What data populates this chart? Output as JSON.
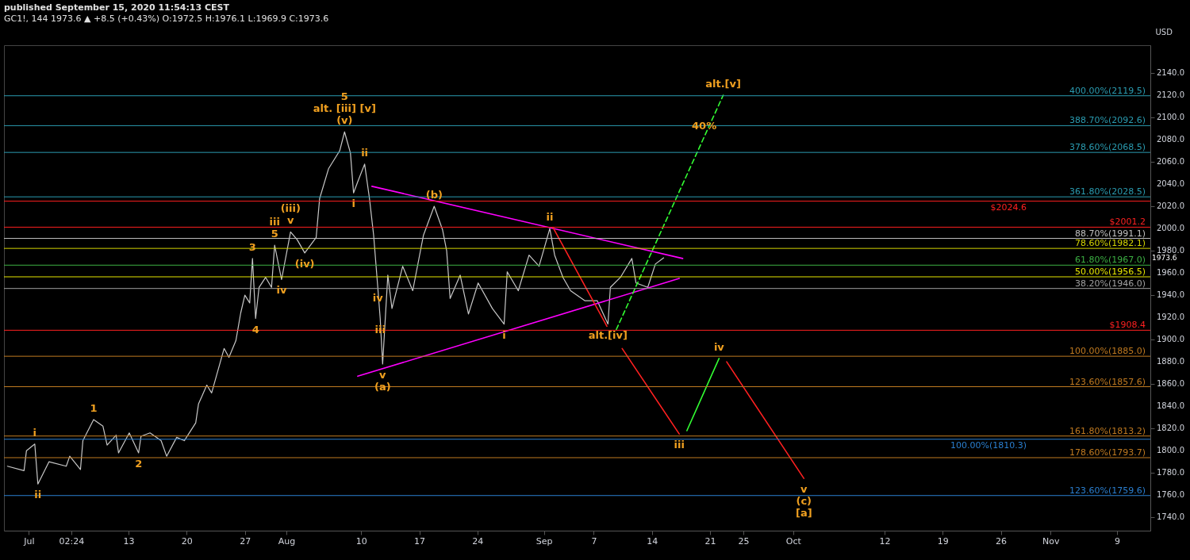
{
  "chart_data": {
    "type": "line",
    "title": "published September 15, 2020 11:54:13 CEST",
    "subtitle": "GC1!, 144  1973.6 ▲ +8.5 (+0.43%) O:1972.5 H:1976.1 L:1969.9 C:1973.6",
    "ylabel": "USD",
    "grid": false,
    "xlim": [
      "2020-06-28",
      "2020-11-13"
    ],
    "xticks": [
      {
        "value": "2020-07-01",
        "label": "Jul"
      },
      {
        "value": "2020-07-06T02:24",
        "label": "02:24"
      },
      {
        "value": "2020-07-13",
        "label": "13"
      },
      {
        "value": "2020-07-20",
        "label": "20"
      },
      {
        "value": "2020-07-27",
        "label": "27"
      },
      {
        "value": "2020-08-01",
        "label": "Aug"
      },
      {
        "value": "2020-08-10",
        "label": "10"
      },
      {
        "value": "2020-08-17",
        "label": "17"
      },
      {
        "value": "2020-08-24",
        "label": "24"
      },
      {
        "value": "2020-09-01",
        "label": "Sep"
      },
      {
        "value": "2020-09-07",
        "label": "7"
      },
      {
        "value": "2020-09-14",
        "label": "14"
      },
      {
        "value": "2020-09-21",
        "label": "21"
      },
      {
        "value": "2020-09-25",
        "label": "25"
      },
      {
        "value": "2020-10-01",
        "label": "Oct"
      },
      {
        "value": "2020-10-12",
        "label": "12"
      },
      {
        "value": "2020-10-19",
        "label": "19"
      },
      {
        "value": "2020-10-26",
        "label": "26"
      },
      {
        "value": "2020-11-01",
        "label": "Nov"
      },
      {
        "value": "2020-11-09",
        "label": "9"
      }
    ],
    "ylim": [
      1728,
      2165
    ],
    "yticks": [
      {
        "value": 1740,
        "label": "1740.0"
      },
      {
        "value": 1760,
        "label": "1760.0"
      },
      {
        "value": 1780,
        "label": "1780.0"
      },
      {
        "value": 1800,
        "label": "1800.0"
      },
      {
        "value": 1820,
        "label": "1820.0"
      },
      {
        "value": 1840,
        "label": "1840.0"
      },
      {
        "value": 1860,
        "label": "1860.0"
      },
      {
        "value": 1880,
        "label": "1880.0"
      },
      {
        "value": 1900,
        "label": "1900.0"
      },
      {
        "value": 1920,
        "label": "1920.0"
      },
      {
        "value": 1940,
        "label": "1940.0"
      },
      {
        "value": 1960,
        "label": "1960.0"
      },
      {
        "value": 1980,
        "label": "1980.0"
      },
      {
        "value": 2000,
        "label": "2000.0"
      },
      {
        "value": 2020,
        "label": "2020.0"
      },
      {
        "value": 2040,
        "label": "2040.0"
      },
      {
        "value": 2060,
        "label": "2060.0"
      },
      {
        "value": 2080,
        "label": "2080.0"
      },
      {
        "value": 2100,
        "label": "2100.0"
      },
      {
        "value": 2120,
        "label": "2120.0"
      },
      {
        "value": 2140,
        "label": "2140.0"
      }
    ],
    "series": [
      {
        "type": "line",
        "color": "#c8c8c8",
        "x": [
          "2020-06-28T10:00",
          "2020-06-30T10:00",
          "2020-06-30T17:00",
          "2020-07-01T17:00",
          "2020-07-02T02:00",
          "2020-07-03T10:00",
          "2020-07-05T12:00",
          "2020-07-05T22:00",
          "2020-07-07T05:00",
          "2020-07-07T12:00",
          "2020-07-08T19:00",
          "2020-07-09T22:00",
          "2020-07-10T10:00",
          "2020-07-11T12:00",
          "2020-07-11T19:00",
          "2020-07-13T02:00",
          "2020-07-14T05:00",
          "2020-07-14T12:00",
          "2020-07-15T14:00",
          "2020-07-16T22:00",
          "2020-07-17T14:00",
          "2020-07-18T19:00",
          "2020-07-19T17:00",
          "2020-07-21T02:00",
          "2020-07-21T10:00",
          "2020-07-22T10:00",
          "2020-07-23T00:00",
          "2020-07-24T12:00",
          "2020-07-25T02:00",
          "2020-07-25T22:00",
          "2020-07-26T12:00",
          "2020-07-27T00:00",
          "2020-07-27T14:00",
          "2020-07-27T22:00",
          "2020-07-28T07:00",
          "2020-07-28T17:00",
          "2020-07-29T12:00",
          "2020-07-30T05:00",
          "2020-07-30T14:00",
          "2020-07-31T10:00",
          "2020-08-01T12:00",
          "2020-08-02T07:00",
          "2020-08-03T05:00",
          "2020-08-04T14:00",
          "2020-08-05T00:00",
          "2020-08-06T02:00",
          "2020-08-07T10:00",
          "2020-08-08T00:00",
          "2020-08-08T17:00",
          "2020-08-09T02:00",
          "2020-08-09T14:00",
          "2020-08-10T10:00",
          "2020-08-11T00:00",
          "2020-08-11T12:00",
          "2020-08-12T00:00",
          "2020-08-12T07:00",
          "2020-08-12T14:00",
          "2020-08-13T05:00",
          "2020-08-13T17:00",
          "2020-08-15T00:00",
          "2020-08-16T05:00",
          "2020-08-17T12:00",
          "2020-08-18T19:00",
          "2020-08-19T19:00",
          "2020-08-20T07:00",
          "2020-08-20T17:00",
          "2020-08-21T22:00",
          "2020-08-22T22:00",
          "2020-08-24T02:00",
          "2020-08-25T19:00",
          "2020-08-27T05:00",
          "2020-08-27T14:00",
          "2020-08-28T22:00",
          "2020-08-30T05:00",
          "2020-08-31T10:00",
          "2020-09-01T17:00",
          "2020-09-02T07:00",
          "2020-09-03T07:00",
          "2020-09-04T05:00",
          "2020-09-05T22:00",
          "2020-09-07T10:00",
          "2020-09-08T17:00",
          "2020-09-09T00:00",
          "2020-09-10T05:00",
          "2020-09-11T14:00",
          "2020-09-12T02:00",
          "2020-09-13T12:00",
          "2020-09-14T10:00",
          "2020-09-15T10:00"
        ],
        "values": [
          1786,
          1782,
          1800,
          1806,
          1770,
          1790,
          1786,
          1795,
          1783,
          1809,
          1828,
          1822,
          1805,
          1814,
          1798,
          1816,
          1798,
          1813,
          1816,
          1809,
          1795,
          1812,
          1809,
          1825,
          1842,
          1859,
          1852,
          1892,
          1884,
          1899,
          1924,
          1940,
          1933,
          1973,
          1919,
          1947,
          1956,
          1947,
          1985,
          1954,
          1997,
          1990,
          1978,
          1992,
          2027,
          2054,
          2070,
          2087,
          2068,
          2032,
          2042,
          2058,
          2027,
          1994,
          1947,
          1919,
          1878,
          1958,
          1928,
          1966,
          1944,
          1994,
          2020,
          1999,
          1980,
          1937,
          1958,
          1923,
          1951,
          1928,
          1914,
          1961,
          1944,
          1976,
          1966,
          2000,
          1976,
          1956,
          1944,
          1935,
          1935,
          1914,
          1947,
          1956,
          1973,
          1951,
          1947,
          1968,
          1973.6
        ]
      },
      {
        "type": "line",
        "color": "#ff00ff",
        "x": [
          "2020-08-11T07:00",
          "2020-09-17T17:00"
        ],
        "values": [
          2038,
          1973
        ]
      },
      {
        "type": "line",
        "color": "#ff00ff",
        "x": [
          "2020-08-09T14:00",
          "2020-09-17T07:00"
        ],
        "values": [
          1867,
          1955
        ]
      },
      {
        "type": "line",
        "color": "#ff2020",
        "x": [
          "2020-09-02T02:00",
          "2020-09-08T14:00"
        ],
        "values": [
          2001,
          1912
        ]
      },
      {
        "type": "line",
        "color": "#ff2020",
        "x": [
          "2020-09-10T10:00",
          "2020-09-17T07:00"
        ],
        "values": [
          1892,
          1815
        ]
      },
      {
        "type": "line",
        "color": "#33ff33",
        "x": [
          "2020-09-18T05:00",
          "2020-09-22T02:00"
        ],
        "values": [
          1818,
          1883
        ]
      },
      {
        "type": "line",
        "color": "#ff2020",
        "x": [
          "2020-09-23T00:00",
          "2020-10-02T07:00"
        ],
        "values": [
          1880,
          1775
        ]
      },
      {
        "type": "line",
        "color": "#33ff33",
        "line_style": "dashed",
        "x": [
          "2020-09-09T17:00",
          "2020-09-22T14:00"
        ],
        "values": [
          1909,
          2120
        ]
      }
    ],
    "ref_lines": [
      {
        "axis": "y",
        "value": 2119.5,
        "label": "400.00%(2119.5)",
        "color": "#2a9bb0"
      },
      {
        "axis": "y",
        "value": 2092.6,
        "label": "388.70%(2092.6)",
        "color": "#2a9bb0"
      },
      {
        "axis": "y",
        "value": 2068.5,
        "label": "378.60%(2068.5)",
        "color": "#2a9bb0"
      },
      {
        "axis": "y",
        "value": 2028.5,
        "label": "361.80%(2028.5)",
        "color": "#2a9bb0"
      },
      {
        "axis": "y",
        "value": 2024.6,
        "label": "$2024.6",
        "color": "#ff2020"
      },
      {
        "axis": "y",
        "value": 2001.2,
        "label": "$2001.2",
        "color": "#ff2020"
      },
      {
        "axis": "y",
        "value": 1991.1,
        "label": "88.70%(1991.1)",
        "color": "#c0c0c0"
      },
      {
        "axis": "y",
        "value": 1982.1,
        "label": "78.60%(1982.1)",
        "color": "#d4d400"
      },
      {
        "axis": "y",
        "value": 1967.0,
        "label": "61.80%(1967.0)",
        "color": "#3cb043"
      },
      {
        "axis": "y",
        "value": 1956.5,
        "label": "50.00%(1956.5)",
        "color": "#e6e600"
      },
      {
        "axis": "y",
        "value": 1946.0,
        "label": "38.20%(1946.0)",
        "color": "#a0a0a0"
      },
      {
        "axis": "y",
        "value": 1908.4,
        "label": "$1908.4",
        "color": "#ff2020"
      },
      {
        "axis": "y",
        "value": 1885.0,
        "label": "100.00%(1885.0)",
        "color": "#c07a20"
      },
      {
        "axis": "y",
        "value": 1857.6,
        "label": "123.60%(1857.6)",
        "color": "#c07a20"
      },
      {
        "axis": "y",
        "value": 1813.2,
        "label": "161.80%(1813.2)",
        "color": "#c07a20"
      },
      {
        "axis": "y",
        "value": 1810.3,
        "label": "100.00%(1810.3)",
        "color": "#2a7fd0"
      },
      {
        "axis": "y",
        "value": 1793.7,
        "label": "178.60%(1793.7)",
        "color": "#c07a20"
      },
      {
        "axis": "y",
        "value": 1759.6,
        "label": "123.60%(1759.6)",
        "color": "#2a7fd0"
      }
    ],
    "annotations": [
      {
        "text": "i",
        "x": "2020-07-01T17:00",
        "y": 1806
      },
      {
        "text": "ii",
        "x": "2020-07-02T02:00",
        "y": 1770
      },
      {
        "text": "1",
        "x": "2020-07-08T19:00",
        "y": 1828
      },
      {
        "text": "2",
        "x": "2020-07-14T05:00",
        "y": 1798
      },
      {
        "text": "3",
        "x": "2020-07-27T22:00",
        "y": 1973
      },
      {
        "text": "4",
        "x": "2020-07-28T07:00",
        "y": 1919
      },
      {
        "text": "5",
        "x": "2020-07-30T14:00",
        "y": 1985
      },
      {
        "text": "iii",
        "x": "2020-07-30T14:00",
        "y": 1985
      },
      {
        "text": "iv",
        "x": "2020-07-31T10:00",
        "y": 1954
      },
      {
        "text": "v",
        "x": "2020-08-01T12:00",
        "y": 1997
      },
      {
        "text": "(iii)",
        "x": "2020-08-01T12:00",
        "y": 1997
      },
      {
        "text": "(iv)",
        "x": "2020-08-03T05:00",
        "y": 1978
      },
      {
        "text": "(v)",
        "x": "2020-08-08T00:00",
        "y": 2087
      },
      {
        "text": "alt. [iii] [v]",
        "x": "2020-08-08T00:00",
        "y": 2087
      },
      {
        "text": "5",
        "x": "2020-08-08T00:00",
        "y": 2087
      },
      {
        "text": "i",
        "x": "2020-08-09T02:00",
        "y": 2032
      },
      {
        "text": "ii",
        "x": "2020-08-10T10:00",
        "y": 2058
      },
      {
        "text": "iv",
        "x": "2020-08-12T00:00",
        "y": 1947
      },
      {
        "text": "iii",
        "x": "2020-08-12T07:00",
        "y": 1919
      },
      {
        "text": "v",
        "x": "2020-08-12T14:00",
        "y": 1878
      },
      {
        "text": "(a)",
        "x": "2020-08-12T14:00",
        "y": 1878
      },
      {
        "text": "(b)",
        "x": "2020-08-18T19:00",
        "y": 2020
      },
      {
        "text": "i",
        "x": "2020-08-27T05:00",
        "y": 1914
      },
      {
        "text": "ii",
        "x": "2020-09-01T17:00",
        "y": 2000
      },
      {
        "text": "alt.[iv]",
        "x": "2020-09-08T17:00",
        "y": 1914
      },
      {
        "text": "40%",
        "x": "2020-09-20T07:00",
        "y": 2082
      },
      {
        "text": "alt.[v]",
        "x": "2020-09-22T14:00",
        "y": 2120
      },
      {
        "text": "iv",
        "x": "2020-09-22T02:00",
        "y": 1883
      },
      {
        "text": "iii",
        "x": "2020-09-17T07:00",
        "y": 1815
      },
      {
        "text": "v",
        "x": "2020-10-02T07:00",
        "y": 1775
      },
      {
        "text": "(c)",
        "x": "2020-10-02T07:00",
        "y": 1775
      },
      {
        "text": "[a]",
        "x": "2020-10-02T07:00",
        "y": 1775
      },
      "1973.6"
    ]
  }
}
